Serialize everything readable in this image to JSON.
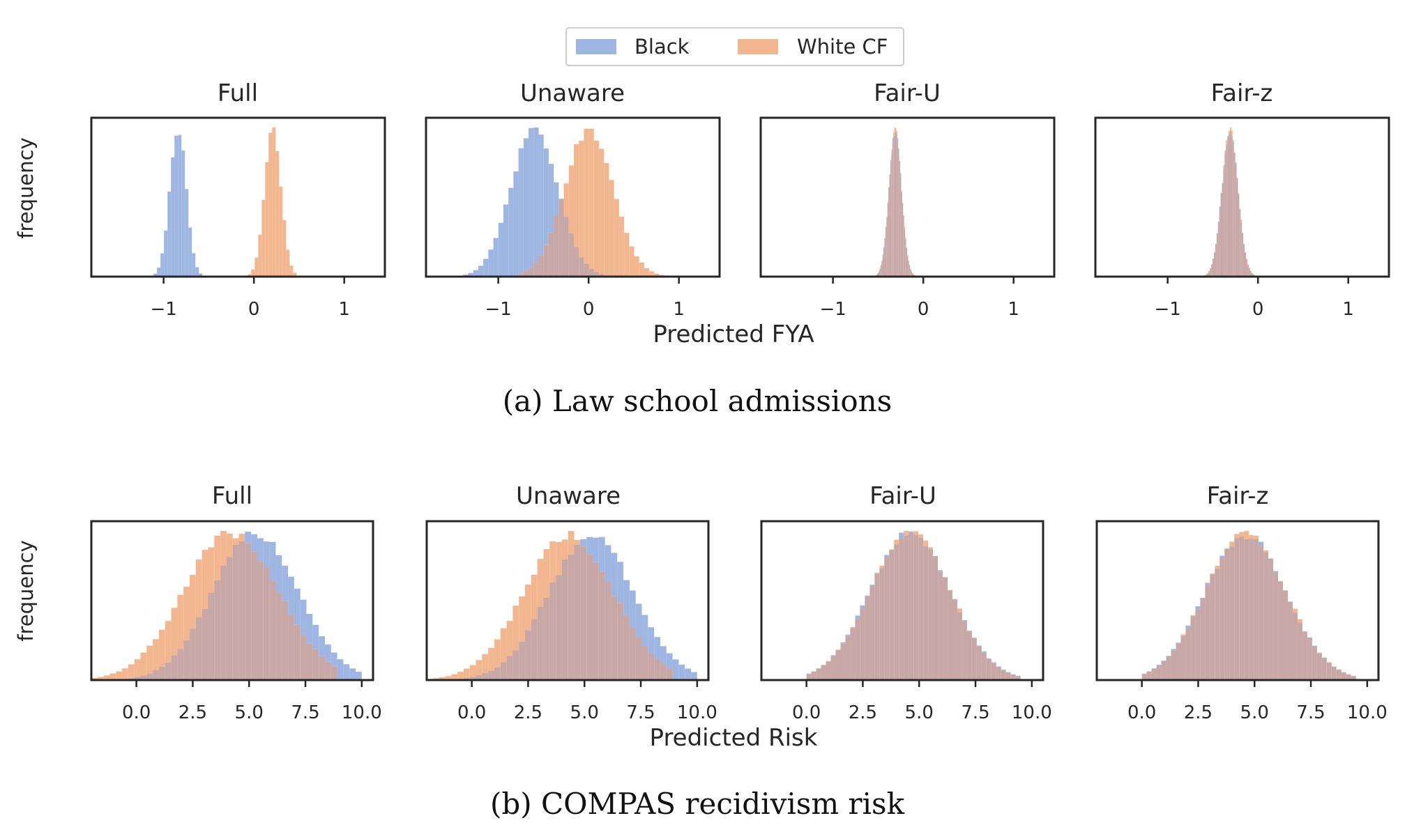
{
  "legend": {
    "placement": "top-center",
    "items": [
      {
        "label": "Black",
        "color": "#9fb6e3"
      },
      {
        "label": "White CF",
        "color": "#f2b791"
      }
    ]
  },
  "overlap_color": "#c8a7a7",
  "chart_data": [
    {
      "type": "histogram",
      "caption": "(a) Law school admissions",
      "xlabel": "Predicted FYA",
      "ylabel": "frequency",
      "xlim": [
        -1.8,
        1.45
      ],
      "xticks": [
        -1,
        0,
        1
      ],
      "xtick_labels": [
        "−1",
        "0",
        "1"
      ],
      "grid": false,
      "panels": [
        {
          "title": "Full",
          "series": [
            {
              "name": "Black",
              "dist": {
                "mean": -0.84,
                "sd": 0.09,
                "range": [
                  -1.15,
                  -0.5
                ]
              }
            },
            {
              "name": "White CF",
              "dist": {
                "mean": 0.21,
                "sd": 0.09,
                "range": [
                  -0.1,
                  0.55
                ]
              }
            }
          ]
        },
        {
          "title": "Unaware",
          "series": [
            {
              "name": "Black",
              "dist": {
                "mean": -0.6,
                "sd": 0.26,
                "range": [
                  -1.5,
                  0.3
                ]
              }
            },
            {
              "name": "White CF",
              "dist": {
                "mean": 0.0,
                "sd": 0.27,
                "range": [
                  -0.8,
                  0.95
                ]
              }
            }
          ]
        },
        {
          "title": "Fair-U",
          "series": [
            {
              "name": "Black",
              "dist": {
                "mean": -0.31,
                "sd": 0.07,
                "range": [
                  -0.55,
                  -0.07
                ]
              }
            },
            {
              "name": "White CF",
              "dist": {
                "mean": -0.31,
                "sd": 0.07,
                "range": [
                  -0.55,
                  -0.07
                ]
              }
            }
          ]
        },
        {
          "title": "Fair-z",
          "series": [
            {
              "name": "Black",
              "dist": {
                "mean": -0.31,
                "sd": 0.09,
                "range": [
                  -0.65,
                  0.0
                ]
              }
            },
            {
              "name": "White CF",
              "dist": {
                "mean": -0.31,
                "sd": 0.09,
                "range": [
                  -0.65,
                  0.0
                ]
              }
            }
          ]
        }
      ]
    },
    {
      "type": "histogram",
      "caption": "(b) COMPAS recidivism risk",
      "xlabel": "Predicted Risk",
      "ylabel": "frequency",
      "xlim": [
        -2.0,
        10.5
      ],
      "xticks": [
        0.0,
        2.5,
        5.0,
        7.5,
        10.0
      ],
      "xtick_labels": [
        "0.0",
        "2.5",
        "5.0",
        "7.5",
        "10.0"
      ],
      "grid": false,
      "panels": [
        {
          "title": "Full",
          "series": [
            {
              "name": "Black",
              "dist": {
                "mean": 5.3,
                "sd": 1.9,
                "range": [
                  -0.5,
                  10.0
                ]
              }
            },
            {
              "name": "White CF",
              "dist": {
                "mean": 4.2,
                "sd": 2.1,
                "range": [
                  -2.0,
                  9.0
                ]
              }
            }
          ]
        },
        {
          "title": "Unaware",
          "series": [
            {
              "name": "Black",
              "dist": {
                "mean": 5.3,
                "sd": 1.9,
                "range": [
                  -0.5,
                  10.0
                ]
              }
            },
            {
              "name": "White CF",
              "dist": {
                "mean": 4.3,
                "sd": 2.0,
                "range": [
                  -2.0,
                  9.0
                ]
              }
            }
          ]
        },
        {
          "title": "Fair-U",
          "series": [
            {
              "name": "Black",
              "dist": {
                "mean": 4.6,
                "sd": 1.8,
                "range": [
                  0.0,
                  9.5
                ]
              }
            },
            {
              "name": "White CF",
              "dist": {
                "mean": 4.6,
                "sd": 1.8,
                "range": [
                  0.0,
                  9.5
                ]
              }
            }
          ]
        },
        {
          "title": "Fair-z",
          "series": [
            {
              "name": "Black",
              "dist": {
                "mean": 4.6,
                "sd": 1.8,
                "range": [
                  0.0,
                  9.5
                ]
              }
            },
            {
              "name": "White CF",
              "dist": {
                "mean": 4.6,
                "sd": 1.8,
                "range": [
                  0.0,
                  9.5
                ]
              }
            }
          ]
        }
      ]
    }
  ]
}
